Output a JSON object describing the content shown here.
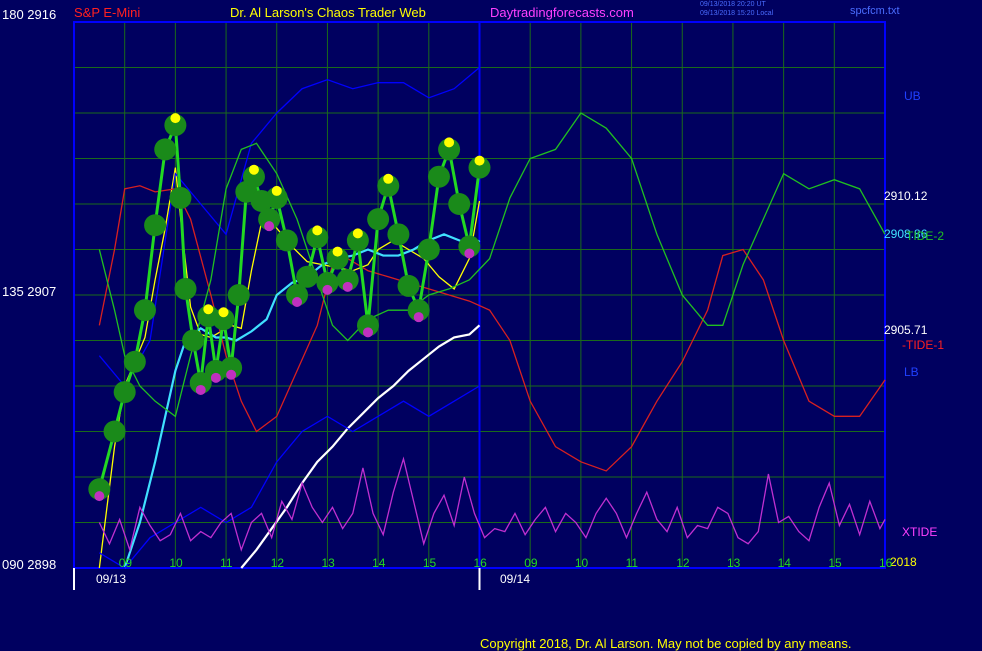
{
  "header": {
    "symbol": "S&P E-Mini",
    "title": "Dr. Al Larson's Chaos Trader Web",
    "site": "Daytradingforecasts.com",
    "stamp1": "09/13/2018 20:20 UT",
    "stamp2": "09/13/2018 15:20 Local",
    "file": "spcfcm.txt"
  },
  "axis_left": {
    "top": "180  2916",
    "mid": "135  2907",
    "bottom": "090  2898"
  },
  "right_labels": {
    "ub": "UB",
    "price_high": "2910.12",
    "tide2": "TIDE-2",
    "price_mid": "2908.86",
    "price_low": "2905.71",
    "tide1": "-TIDE-1",
    "lb": "LB",
    "xtide": "XTIDE",
    "year": "2018"
  },
  "x_ticks": [
    "09",
    "10",
    "11",
    "12",
    "13",
    "14",
    "15",
    "16",
    "09",
    "10",
    "11",
    "12",
    "13",
    "14",
    "15",
    "16"
  ],
  "dates": [
    "09/13",
    "09/14"
  ],
  "copyright": "Copyright 2018, Dr. Al Larson. May not be copied by any means.",
  "colors": {
    "background": "#000060",
    "grid": "#1a6a1a",
    "price": "#22d822",
    "upper_band": "#0000ff",
    "tide1": "#d82020",
    "tide2": "#20c020",
    "cyan_avg": "#40e0ff",
    "slow_avg": "#ffffff",
    "xtide": "#c030d0",
    "yellow_avg": "#ffff00"
  },
  "chart_data": {
    "type": "line",
    "title": "S&P E-Mini",
    "ylim": [
      2898,
      2916
    ],
    "y_ticks": [
      2898,
      2907,
      2916
    ],
    "x_labels": [
      "09",
      "10",
      "11",
      "12",
      "13",
      "14",
      "15",
      "16",
      "09",
      "10",
      "11",
      "12",
      "13",
      "14",
      "15",
      "16"
    ],
    "date_labels": [
      "09/13",
      "09/14"
    ],
    "series": [
      {
        "name": "S&P E-Mini",
        "color": "#22d822",
        "x": [
          8.5,
          8.8,
          9.0,
          9.2,
          9.4,
          9.6,
          9.8,
          10.0,
          10.1,
          10.2,
          10.35,
          10.5,
          10.65,
          10.8,
          10.95,
          11.1,
          11.25,
          11.4,
          11.55,
          11.7,
          11.85,
          12.0,
          12.2,
          12.4,
          12.6,
          12.8,
          13.0,
          13.2,
          13.4,
          13.6,
          13.8,
          14.0,
          14.2,
          14.4,
          14.6,
          14.8,
          15.0,
          15.2,
          15.4,
          15.6,
          15.8,
          16.0
        ],
        "y": [
          2900.6,
          2902.5,
          2903.8,
          2904.8,
          2906.5,
          2909.3,
          2911.8,
          2912.6,
          2910.2,
          2907.2,
          2905.5,
          2904.1,
          2906.3,
          2904.5,
          2906.2,
          2904.6,
          2907.0,
          2910.4,
          2910.9,
          2910.1,
          2909.5,
          2910.2,
          2908.8,
          2907.0,
          2907.6,
          2908.9,
          2907.4,
          2908.2,
          2907.5,
          2908.8,
          2906.0,
          2909.5,
          2910.6,
          2909.0,
          2907.3,
          2906.5,
          2908.5,
          2910.9,
          2911.8,
          2910.0,
          2908.6,
          2911.2
        ]
      },
      {
        "name": "",
        "color": "#ffff00",
        "x": [
          8.5,
          8.8,
          9.0,
          9.2,
          9.4,
          9.6,
          9.8,
          10.0,
          10.15,
          10.3,
          10.5,
          10.7,
          10.9,
          11.1,
          11.3,
          11.5,
          11.7,
          11.9,
          12.1,
          12.3,
          12.6,
          12.9,
          13.2,
          13.5,
          13.8,
          14.0,
          14.3,
          14.6,
          14.9,
          15.2,
          15.5,
          15.8,
          16.0
        ],
        "y": [
          2898.0,
          2902.0,
          2904.0,
          2904.8,
          2905.6,
          2907.5,
          2909.2,
          2911.2,
          2908.8,
          2906.6,
          2905.7,
          2905.6,
          2905.8,
          2906.0,
          2905.9,
          2907.8,
          2909.4,
          2909.4,
          2909.0,
          2908.6,
          2908.1,
          2908.0,
          2907.9,
          2907.8,
          2908.0,
          2908.5,
          2908.8,
          2908.5,
          2908.2,
          2907.6,
          2907.2,
          2908.2,
          2910.1
        ]
      },
      {
        "name": "",
        "color": "#40e0ff",
        "x": [
          9.0,
          9.3,
          9.6,
          9.8,
          10.0,
          10.2,
          10.5,
          10.8,
          11.0,
          11.2,
          11.5,
          11.8,
          12.0,
          12.3,
          12.6,
          12.9,
          13.2,
          13.5,
          13.8,
          14.1,
          14.4,
          14.7,
          15.0,
          15.3,
          15.6,
          15.9,
          16.0
        ],
        "y": [
          2898.0,
          2899.5,
          2901.5,
          2903.0,
          2904.5,
          2905.5,
          2905.9,
          2905.6,
          2905.6,
          2905.5,
          2905.8,
          2906.2,
          2907.0,
          2907.4,
          2907.6,
          2908.0,
          2908.2,
          2908.3,
          2908.5,
          2908.3,
          2908.3,
          2908.5,
          2908.8,
          2909.0,
          2908.8,
          2908.6,
          2908.8
        ]
      },
      {
        "name": "",
        "color": "#ffffff",
        "x": [
          11.3,
          11.6,
          11.9,
          12.2,
          12.5,
          12.8,
          13.1,
          13.4,
          13.7,
          14.0,
          14.3,
          14.6,
          14.9,
          15.2,
          15.5,
          15.8,
          16.0
        ],
        "y": [
          2898.0,
          2898.6,
          2899.3,
          2900.0,
          2900.8,
          2901.5,
          2902.0,
          2902.6,
          2903.1,
          2903.6,
          2904.0,
          2904.5,
          2904.9,
          2905.3,
          2905.6,
          2905.7,
          2906.0
        ]
      },
      {
        "name": "UB",
        "color": "#0000ff",
        "x": [
          8.5,
          9.0,
          9.5,
          10.0,
          10.5,
          11.0,
          11.5,
          12.0,
          12.5,
          13.0,
          13.5,
          14.0,
          14.5,
          15.0,
          15.5,
          16.0
        ],
        "y": [
          2905.0,
          2904.0,
          2905.5,
          2911.0,
          2910.0,
          2909.0,
          2912.0,
          2913.0,
          2913.8,
          2914.1,
          2913.8,
          2914.0,
          2914.0,
          2913.5,
          2913.8,
          2914.5
        ]
      },
      {
        "name": "LB",
        "color": "#0000ff",
        "x": [
          8.5,
          9.0,
          9.5,
          10.0,
          10.5,
          11.0,
          11.5,
          12.0,
          12.5,
          13.0,
          13.5,
          14.0,
          14.5,
          15.0,
          15.5,
          16.0
        ],
        "y": [
          2898.5,
          2898.0,
          2899.0,
          2899.5,
          2900.0,
          2899.5,
          2900.0,
          2901.5,
          2902.5,
          2903.0,
          2902.5,
          2903.0,
          2903.5,
          2903.0,
          2903.5,
          2904.0
        ]
      },
      {
        "name": "-TIDE-1",
        "color": "#d82020",
        "x": [
          8.5,
          8.8,
          9.0,
          9.3,
          9.6,
          10.0,
          10.3,
          10.7,
          11.0,
          11.3,
          11.6,
          12.0,
          12.4,
          12.8,
          13.1,
          13.4,
          13.8,
          14.2,
          14.6,
          15.0,
          15.4,
          15.8,
          16.2,
          16.6,
          17.0,
          17.5,
          18.0,
          18.5,
          19.0,
          19.5,
          20.0,
          20.5,
          20.8,
          21.2,
          21.6,
          22.0,
          22.5,
          23.0,
          23.5,
          24.0
        ],
        "y": [
          2906.0,
          2908.5,
          2910.5,
          2910.6,
          2910.4,
          2910.5,
          2909.5,
          2907.0,
          2905.0,
          2903.5,
          2902.5,
          2903.0,
          2904.5,
          2906.0,
          2908.0,
          2908.2,
          2907.8,
          2907.6,
          2907.4,
          2907.2,
          2907.0,
          2906.8,
          2906.5,
          2905.5,
          2903.5,
          2902.0,
          2901.5,
          2901.2,
          2902.0,
          2903.5,
          2904.8,
          2906.5,
          2908.3,
          2908.5,
          2907.5,
          2905.5,
          2903.5,
          2903.0,
          2903.0,
          2904.2
        ]
      },
      {
        "name": "TIDE-2",
        "color": "#20c020",
        "x": [
          8.5,
          8.8,
          9.0,
          9.3,
          9.6,
          10.0,
          10.3,
          10.7,
          11.0,
          11.3,
          11.6,
          12.0,
          12.4,
          12.8,
          13.1,
          13.4,
          13.8,
          14.2,
          14.6,
          15.0,
          15.4,
          15.8,
          16.2,
          16.6,
          17.0,
          17.5,
          18.0,
          18.5,
          19.0,
          19.5,
          20.0,
          20.5,
          20.8,
          21.2,
          21.6,
          22.0,
          22.5,
          23.0,
          23.5,
          24.0
        ],
        "y": [
          2908.5,
          2906.5,
          2905.0,
          2904.0,
          2903.5,
          2903.0,
          2905.0,
          2907.5,
          2910.5,
          2911.8,
          2912.0,
          2911.0,
          2909.5,
          2907.5,
          2906.0,
          2905.5,
          2906.2,
          2906.5,
          2906.5,
          2907.0,
          2907.2,
          2907.5,
          2908.2,
          2910.2,
          2911.5,
          2911.8,
          2913.0,
          2912.5,
          2911.5,
          2909.0,
          2907.0,
          2906.0,
          2906.0,
          2908.0,
          2909.5,
          2911.0,
          2910.5,
          2910.8,
          2910.5,
          2909.0
        ]
      },
      {
        "name": "XTIDE",
        "color": "#c030d0",
        "x": [
          8.5,
          8.7,
          8.9,
          9.1,
          9.3,
          9.5,
          9.7,
          9.9,
          10.1,
          10.3,
          10.5,
          10.7,
          10.9,
          11.1,
          11.3,
          11.5,
          11.7,
          11.9,
          12.1,
          12.3,
          12.5,
          12.7,
          12.9,
          13.1,
          13.3,
          13.5,
          13.7,
          13.9,
          14.1,
          14.3,
          14.5,
          14.7,
          14.9,
          15.1,
          15.3,
          15.5,
          15.7,
          15.9,
          16.1,
          16.3,
          16.5,
          16.7,
          16.9,
          17.1,
          17.3,
          17.5,
          17.7,
          17.9,
          18.1,
          18.3,
          18.5,
          18.7,
          18.9,
          19.1,
          19.3,
          19.5,
          19.7,
          19.9,
          20.1,
          20.3,
          20.5,
          20.7,
          20.9,
          21.1,
          21.3,
          21.5,
          21.7,
          21.9,
          22.1,
          22.3,
          22.5,
          22.7,
          22.9,
          23.1,
          23.3,
          23.5,
          23.7,
          23.9,
          24.0
        ],
        "y": [
          2899.5,
          2898.8,
          2899.6,
          2898.6,
          2900.0,
          2899.4,
          2898.9,
          2899.1,
          2899.8,
          2898.9,
          2899.2,
          2899.0,
          2899.5,
          2899.8,
          2898.6,
          2899.5,
          2899.8,
          2899.0,
          2900.2,
          2899.6,
          2900.8,
          2900.0,
          2899.5,
          2900.0,
          2899.3,
          2899.8,
          2901.3,
          2899.8,
          2899.1,
          2900.5,
          2901.6,
          2900.2,
          2898.8,
          2899.8,
          2900.4,
          2899.4,
          2901.0,
          2899.8,
          2899.0,
          2899.3,
          2899.2,
          2899.8,
          2899.1,
          2899.6,
          2900.0,
          2899.2,
          2899.8,
          2899.5,
          2899.0,
          2899.8,
          2900.3,
          2899.8,
          2899.0,
          2899.8,
          2900.5,
          2899.6,
          2899.2,
          2900.0,
          2899.0,
          2899.4,
          2899.3,
          2900.0,
          2899.8,
          2899.0,
          2898.8,
          2899.2,
          2901.1,
          2899.5,
          2899.7,
          2899.2,
          2898.9,
          2900.0,
          2900.8,
          2899.4,
          2900.1,
          2899.1,
          2900.2,
          2899.3,
          2899.6
        ]
      }
    ]
  }
}
